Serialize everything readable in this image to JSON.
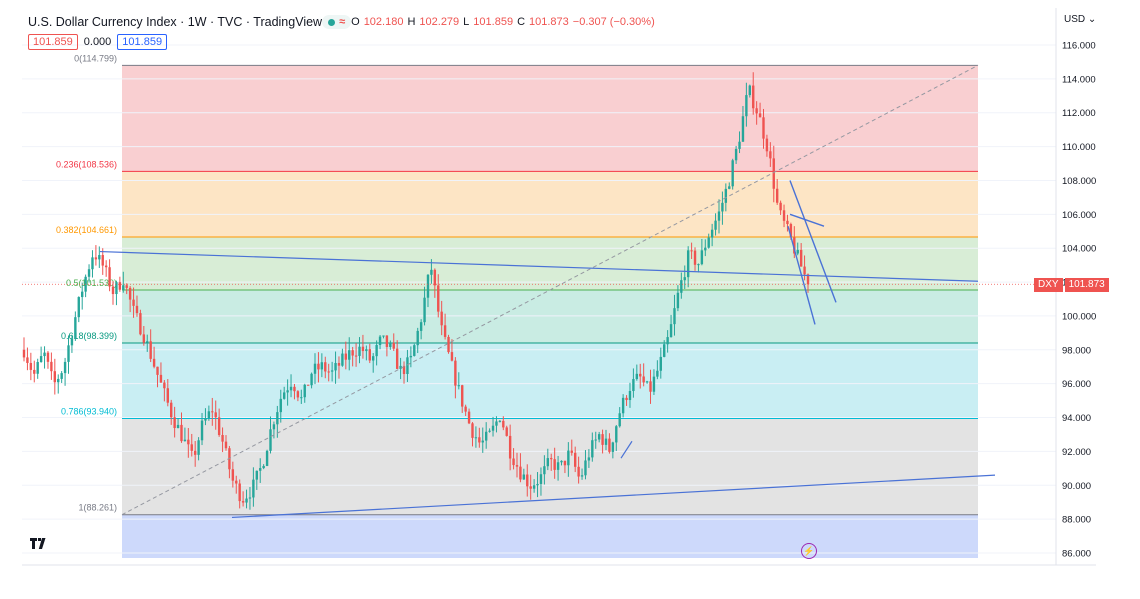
{
  "header": {
    "title": "U.S. Dollar Currency Index · 1W · TVC · TradingView",
    "ohlc": {
      "o_label": "O",
      "o": "102.180",
      "h_label": "H",
      "h": "102.279",
      "l_label": "L",
      "l": "101.859",
      "c_label": "C",
      "c": "101.873",
      "change": "−0.307 (−0.30%)"
    },
    "bid": "101.859",
    "spread": "0.000",
    "ask": "101.859"
  },
  "currency_menu": "USD",
  "current_price_label": {
    "symbol": "DXY",
    "price": "101.873"
  },
  "colors": {
    "up": "#26a69a",
    "down": "#ef5350",
    "trend": "#4a72d6"
  },
  "chart_data": {
    "type": "candlestick",
    "timeframe": "1W",
    "y_ticks": [
      "116.000",
      "114.000",
      "112.000",
      "110.000",
      "108.000",
      "106.000",
      "104.000",
      "102.000",
      "100.000",
      "98.000",
      "96.000",
      "94.000",
      "92.000",
      "90.000",
      "88.000",
      "86.000"
    ],
    "ylim": [
      85.7,
      116.8
    ],
    "current_price": 101.873,
    "fib_retracement": {
      "high": 114.799,
      "low": 88.261,
      "levels": [
        {
          "ratio": 0,
          "price": 114.799,
          "label": "0(114.799)",
          "color": "#787b86"
        },
        {
          "ratio": 0.236,
          "price": 108.536,
          "label": "0.236(108.536)",
          "color": "#f23645"
        },
        {
          "ratio": 0.382,
          "price": 104.661,
          "label": "0.382(104.661)",
          "color": "#ff9800"
        },
        {
          "ratio": 0.5,
          "price": 101.53,
          "label": "0.5(101.530)",
          "color": "#4caf50"
        },
        {
          "ratio": 0.618,
          "price": 98.399,
          "label": "0.618(98.399)",
          "color": "#089981"
        },
        {
          "ratio": 0.786,
          "price": 93.94,
          "label": "0.786(93.940)",
          "color": "#00bcd4"
        },
        {
          "ratio": 1,
          "price": 88.261,
          "label": "1(88.261)",
          "color": "#787b86"
        }
      ]
    },
    "trend_path": [
      98.0,
      96.5,
      97.8,
      95.9,
      97.0,
      99.5,
      101.9,
      103.8,
      102.9,
      101.4,
      102.2,
      100.3,
      99.0,
      97.3,
      95.6,
      94.0,
      92.8,
      91.5,
      93.6,
      94.5,
      92.6,
      90.3,
      89.2,
      89.8,
      91.2,
      93.6,
      95.4,
      96.2,
      95.0,
      96.7,
      97.0,
      96.6,
      97.3,
      97.9,
      98.1,
      97.3,
      98.6,
      98.0,
      96.7,
      97.4,
      99.8,
      103.0,
      99.3,
      97.2,
      95.2,
      93.4,
      92.4,
      93.0,
      94.2,
      92.0,
      90.8,
      90.0,
      90.4,
      91.4,
      91.0,
      91.9,
      90.3,
      92.0,
      93.0,
      92.1,
      94.3,
      95.8,
      96.4,
      95.5,
      97.0,
      98.8,
      101.5,
      103.6,
      103.1,
      104.8,
      106.0,
      107.9,
      110.3,
      113.4,
      111.9,
      109.8,
      106.2,
      104.9,
      103.4,
      101.9
    ]
  }
}
